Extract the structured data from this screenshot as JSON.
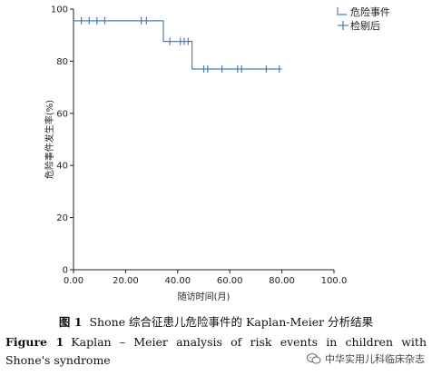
{
  "chart_data": {
    "type": "line",
    "subtype": "step-survival",
    "xlabel": "随访时间(月)",
    "ylabel": "危险事件发生率(%)",
    "xlim": [
      0,
      100
    ],
    "ylim": [
      0,
      100
    ],
    "xticks": [
      0,
      20,
      40,
      60,
      80,
      100
    ],
    "xtick_labels": [
      "0.00",
      "20.00",
      "40.00",
      "60.00",
      "80.00",
      "100.0"
    ],
    "yticks": [
      0,
      20,
      40,
      60,
      80,
      100
    ],
    "ytick_labels": [
      "0",
      "20",
      "40",
      "60",
      "80",
      "100"
    ],
    "grid": false,
    "legend_position": "top-right",
    "series": [
      {
        "name": "危险事件",
        "color": "#4a7fb8",
        "steps": [
          [
            0,
            95.5
          ],
          [
            34.5,
            95.5
          ],
          [
            34.5,
            87.6
          ],
          [
            45.5,
            87.6
          ],
          [
            45.5,
            77.0
          ],
          [
            80.0,
            77.0
          ]
        ],
        "censored": [
          [
            3,
            95.5
          ],
          [
            6,
            95.5
          ],
          [
            9,
            95.5
          ],
          [
            12,
            95.5
          ],
          [
            26,
            95.5
          ],
          [
            28,
            95.5
          ],
          [
            37,
            87.6
          ],
          [
            41,
            87.6
          ],
          [
            42.5,
            87.6
          ],
          [
            44,
            87.6
          ],
          [
            50,
            77.0
          ],
          [
            51.5,
            77.0
          ],
          [
            57,
            77.0
          ],
          [
            63,
            77.0
          ],
          [
            64.5,
            77.0
          ],
          [
            74,
            77.0
          ],
          [
            79,
            77.0
          ]
        ]
      }
    ],
    "legend": [
      {
        "label": "危险事件",
        "symbol": "line"
      },
      {
        "label": "检剔后",
        "symbol": "censor-mark"
      }
    ]
  },
  "caption": {
    "cn_label": "图 1",
    "cn_text": "Shone 综合征患儿危险事件的 Kaplan-Meier 分析结果",
    "en_label": "Figure 1",
    "en_text": "Kaplan – Meier analysis of risk events in children with Shone's syndrome"
  },
  "watermark": {
    "text": "中华实用儿科临床杂志",
    "icon": "wechat-icon"
  }
}
